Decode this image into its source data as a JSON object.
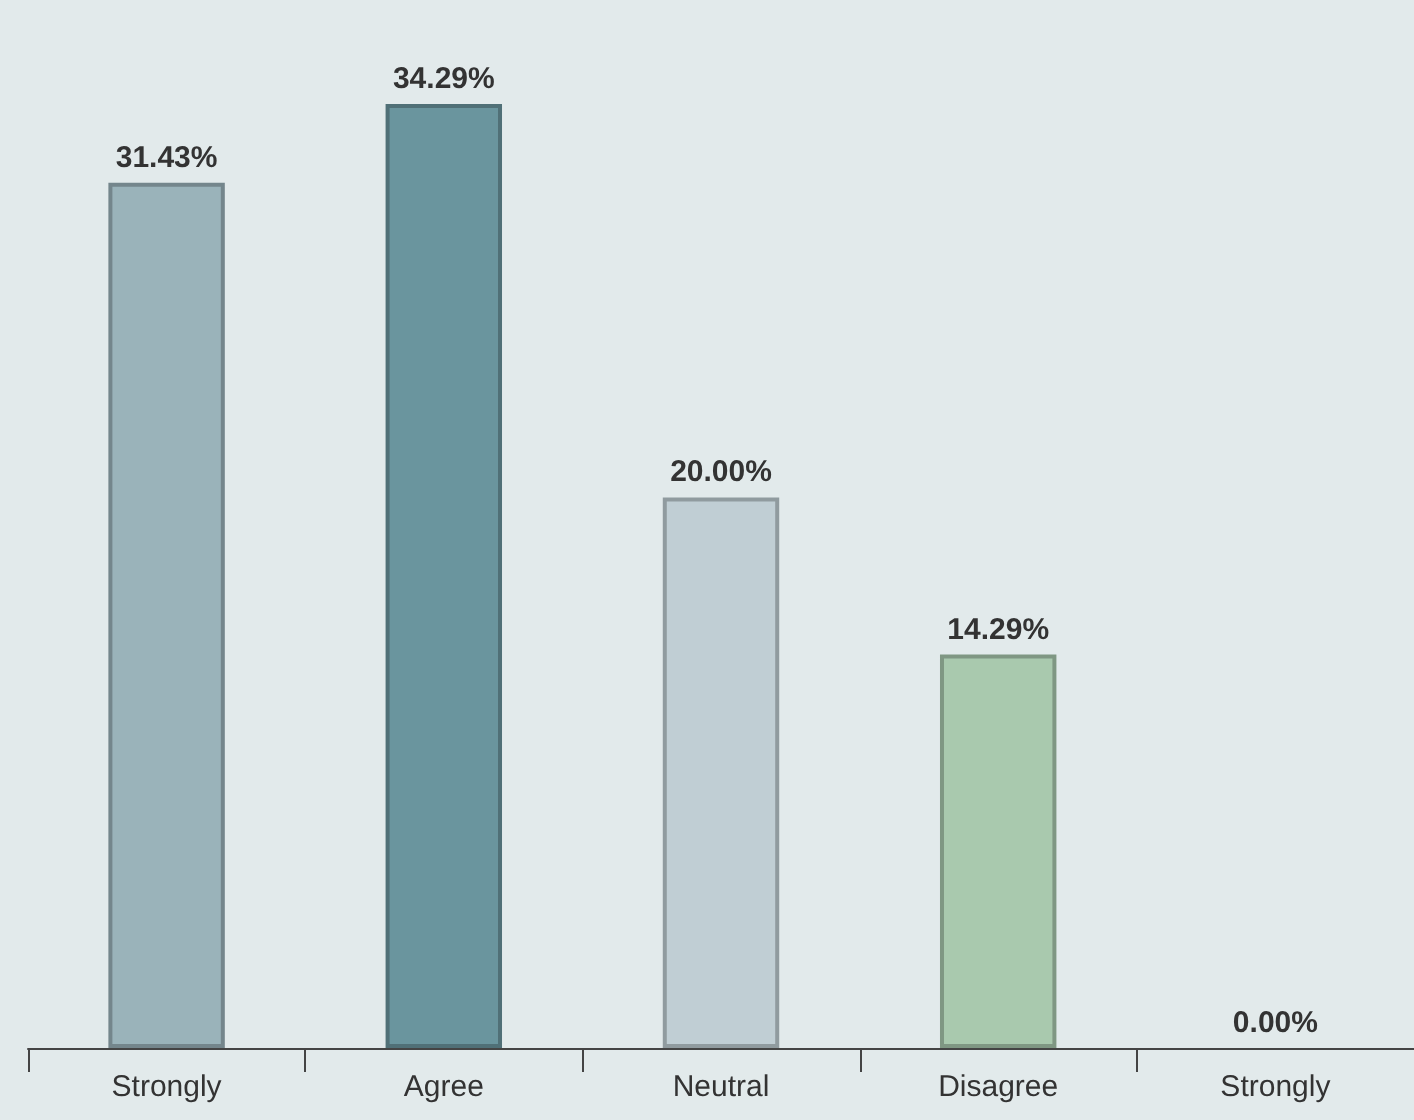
{
  "chart_data": {
    "type": "bar",
    "categories": [
      "Strongly",
      "Agree",
      "Neutral",
      "Disagree",
      "Strongly"
    ],
    "values": [
      31.43,
      34.29,
      20.0,
      14.29,
      0.0
    ],
    "colors": [
      "#9ab3ba",
      "#6a959e",
      "#c0ced4",
      "#a9c9ae",
      "#d9a3a0"
    ],
    "value_labels": [
      "31.43%",
      "34.29%",
      "20.00%",
      "14.29%",
      "0.00%"
    ]
  }
}
